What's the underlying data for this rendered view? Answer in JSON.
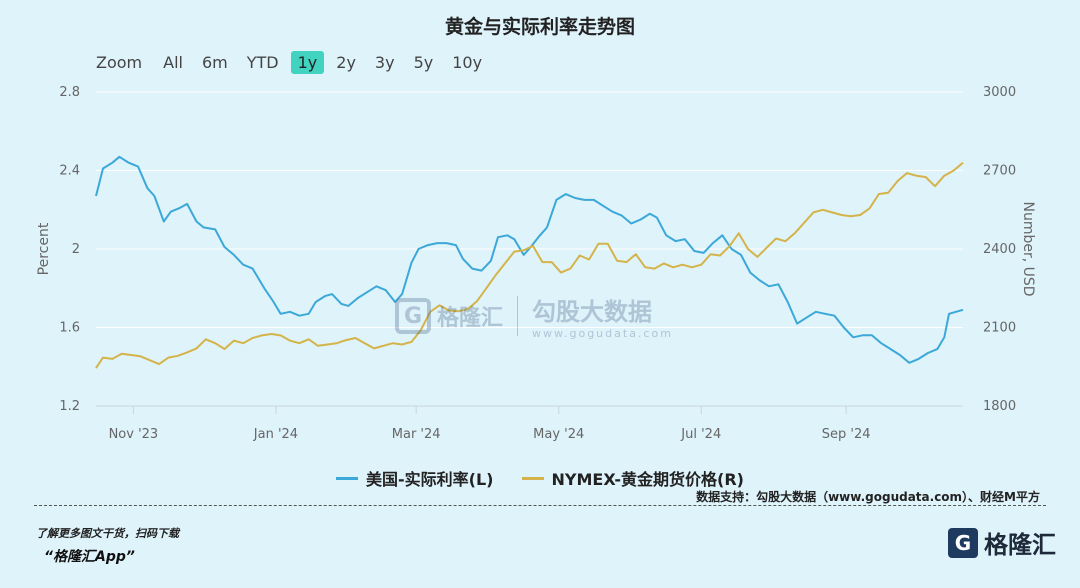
{
  "title": "黄金与实际利率走势图",
  "zoom": {
    "label": "Zoom",
    "buttons": [
      "All",
      "6m",
      "YTD",
      "1y",
      "2y",
      "3y",
      "5y",
      "10y"
    ],
    "active": "1y"
  },
  "watermark": {
    "name": "格隆汇",
    "brand": "勾股大数据",
    "url": "www.gogudata.com"
  },
  "source_note": "数据支持：勾股大数据（www.gogudata.com）、财经M平方",
  "footer": {
    "line1": "了解更多图文干货，扫码下载",
    "line2": "“格隆汇App”"
  },
  "logo": {
    "mark": "G",
    "name": "格隆汇"
  },
  "colors": {
    "real_rate": "#3ba8d8",
    "gold": "#d4b44a",
    "axis_text": "#666666",
    "grid": "#ffffff"
  },
  "chart_data": {
    "type": "line",
    "x_type": "date",
    "x_range": [
      "2023-10-16",
      "2024-10-21"
    ],
    "x_ticks": [
      {
        "date": "2023-11-01",
        "label": "Nov '23"
      },
      {
        "date": "2024-01-01",
        "label": "Jan '24"
      },
      {
        "date": "2024-03-01",
        "label": "Mar '24"
      },
      {
        "date": "2024-05-01",
        "label": "May '24"
      },
      {
        "date": "2024-07-01",
        "label": "Jul '24"
      },
      {
        "date": "2024-09-01",
        "label": "Sep '24"
      }
    ],
    "y_left": {
      "label": "Percent",
      "range": [
        1.2,
        2.8
      ],
      "ticks": [
        1.2,
        1.6,
        2,
        2.4,
        2.8
      ]
    },
    "y_right": {
      "label": "Number, USD",
      "range": [
        1800,
        3000
      ],
      "ticks": [
        1800,
        2100,
        2400,
        2700,
        3000
      ]
    },
    "legend_position": "bottom",
    "grid": true,
    "series": [
      {
        "name": "美国-实际利率(L)",
        "axis": "left",
        "points": [
          [
            "2023-10-16",
            2.27
          ],
          [
            "2023-10-19",
            2.41
          ],
          [
            "2023-10-23",
            2.44
          ],
          [
            "2023-10-26",
            2.47
          ],
          [
            "2023-10-30",
            2.44
          ],
          [
            "2023-11-03",
            2.42
          ],
          [
            "2023-11-07",
            2.31
          ],
          [
            "2023-11-10",
            2.27
          ],
          [
            "2023-11-14",
            2.14
          ],
          [
            "2023-11-17",
            2.19
          ],
          [
            "2023-11-21",
            2.21
          ],
          [
            "2023-11-24",
            2.23
          ],
          [
            "2023-11-28",
            2.14
          ],
          [
            "2023-12-01",
            2.11
          ],
          [
            "2023-12-06",
            2.1
          ],
          [
            "2023-12-10",
            2.01
          ],
          [
            "2023-12-14",
            1.97
          ],
          [
            "2023-12-18",
            1.92
          ],
          [
            "2023-12-22",
            1.9
          ],
          [
            "2023-12-27",
            1.8
          ],
          [
            "2023-12-31",
            1.73
          ],
          [
            "2024-01-03",
            1.67
          ],
          [
            "2024-01-07",
            1.68
          ],
          [
            "2024-01-11",
            1.66
          ],
          [
            "2024-01-15",
            1.67
          ],
          [
            "2024-01-18",
            1.73
          ],
          [
            "2024-01-22",
            1.76
          ],
          [
            "2024-01-25",
            1.77
          ],
          [
            "2024-01-29",
            1.72
          ],
          [
            "2024-02-01",
            1.71
          ],
          [
            "2024-02-05",
            1.75
          ],
          [
            "2024-02-09",
            1.78
          ],
          [
            "2024-02-13",
            1.81
          ],
          [
            "2024-02-17",
            1.79
          ],
          [
            "2024-02-21",
            1.73
          ],
          [
            "2024-02-24",
            1.77
          ],
          [
            "2024-02-28",
            1.93
          ],
          [
            "2024-03-02",
            2.0
          ],
          [
            "2024-03-06",
            2.02
          ],
          [
            "2024-03-10",
            2.03
          ],
          [
            "2024-03-14",
            2.03
          ],
          [
            "2024-03-18",
            2.02
          ],
          [
            "2024-03-21",
            1.95
          ],
          [
            "2024-03-25",
            1.9
          ],
          [
            "2024-03-29",
            1.89
          ],
          [
            "2024-04-02",
            1.94
          ],
          [
            "2024-04-05",
            2.06
          ],
          [
            "2024-04-09",
            2.07
          ],
          [
            "2024-04-12",
            2.05
          ],
          [
            "2024-04-16",
            1.97
          ],
          [
            "2024-04-19",
            2.01
          ],
          [
            "2024-04-23",
            2.07
          ],
          [
            "2024-04-26",
            2.11
          ],
          [
            "2024-04-30",
            2.25
          ],
          [
            "2024-05-04",
            2.28
          ],
          [
            "2024-05-08",
            2.26
          ],
          [
            "2024-05-12",
            2.25
          ],
          [
            "2024-05-16",
            2.25
          ],
          [
            "2024-05-20",
            2.22
          ],
          [
            "2024-05-24",
            2.19
          ],
          [
            "2024-05-28",
            2.17
          ],
          [
            "2024-06-01",
            2.13
          ],
          [
            "2024-06-05",
            2.15
          ],
          [
            "2024-06-09",
            2.18
          ],
          [
            "2024-06-12",
            2.16
          ],
          [
            "2024-06-16",
            2.07
          ],
          [
            "2024-06-20",
            2.04
          ],
          [
            "2024-06-24",
            2.05
          ],
          [
            "2024-06-28",
            1.99
          ],
          [
            "2024-07-02",
            1.98
          ],
          [
            "2024-07-06",
            2.03
          ],
          [
            "2024-07-10",
            2.07
          ],
          [
            "2024-07-14",
            2.0
          ],
          [
            "2024-07-18",
            1.97
          ],
          [
            "2024-07-22",
            1.88
          ],
          [
            "2024-07-26",
            1.84
          ],
          [
            "2024-07-30",
            1.81
          ],
          [
            "2024-08-03",
            1.82
          ],
          [
            "2024-08-07",
            1.73
          ],
          [
            "2024-08-11",
            1.62
          ],
          [
            "2024-08-15",
            1.65
          ],
          [
            "2024-08-19",
            1.68
          ],
          [
            "2024-08-23",
            1.67
          ],
          [
            "2024-08-27",
            1.66
          ],
          [
            "2024-08-31",
            1.6
          ],
          [
            "2024-09-04",
            1.55
          ],
          [
            "2024-09-08",
            1.56
          ],
          [
            "2024-09-12",
            1.56
          ],
          [
            "2024-09-16",
            1.52
          ],
          [
            "2024-09-20",
            1.49
          ],
          [
            "2024-09-24",
            1.46
          ],
          [
            "2024-09-28",
            1.42
          ],
          [
            "2024-10-02",
            1.44
          ],
          [
            "2024-10-06",
            1.47
          ],
          [
            "2024-10-10",
            1.49
          ],
          [
            "2024-10-13",
            1.55
          ],
          [
            "2024-10-15",
            1.67
          ],
          [
            "2024-10-18",
            1.68
          ],
          [
            "2024-10-21",
            1.69
          ]
        ]
      },
      {
        "name": "NYMEX-黄金期货价格(R)",
        "axis": "right",
        "points": [
          [
            "2023-10-16",
            1945
          ],
          [
            "2023-10-19",
            1985
          ],
          [
            "2023-10-23",
            1980
          ],
          [
            "2023-10-27",
            2000
          ],
          [
            "2023-10-31",
            1995
          ],
          [
            "2023-11-04",
            1990
          ],
          [
            "2023-11-08",
            1975
          ],
          [
            "2023-11-12",
            1960
          ],
          [
            "2023-11-16",
            1985
          ],
          [
            "2023-11-20",
            1992
          ],
          [
            "2023-11-24",
            2005
          ],
          [
            "2023-11-28",
            2020
          ],
          [
            "2023-12-02",
            2055
          ],
          [
            "2023-12-06",
            2040
          ],
          [
            "2023-12-10",
            2018
          ],
          [
            "2023-12-14",
            2050
          ],
          [
            "2023-12-18",
            2040
          ],
          [
            "2023-12-22",
            2060
          ],
          [
            "2023-12-26",
            2070
          ],
          [
            "2023-12-30",
            2075
          ],
          [
            "2024-01-03",
            2070
          ],
          [
            "2024-01-07",
            2050
          ],
          [
            "2024-01-11",
            2040
          ],
          [
            "2024-01-15",
            2055
          ],
          [
            "2024-01-19",
            2030
          ],
          [
            "2024-01-23",
            2035
          ],
          [
            "2024-01-27",
            2040
          ],
          [
            "2024-01-31",
            2052
          ],
          [
            "2024-02-04",
            2060
          ],
          [
            "2024-02-08",
            2040
          ],
          [
            "2024-02-12",
            2020
          ],
          [
            "2024-02-16",
            2030
          ],
          [
            "2024-02-20",
            2040
          ],
          [
            "2024-02-24",
            2035
          ],
          [
            "2024-02-28",
            2045
          ],
          [
            "2024-03-03",
            2090
          ],
          [
            "2024-03-07",
            2160
          ],
          [
            "2024-03-11",
            2185
          ],
          [
            "2024-03-15",
            2165
          ],
          [
            "2024-03-19",
            2162
          ],
          [
            "2024-03-23",
            2170
          ],
          [
            "2024-03-27",
            2200
          ],
          [
            "2024-03-31",
            2250
          ],
          [
            "2024-04-04",
            2300
          ],
          [
            "2024-04-08",
            2345
          ],
          [
            "2024-04-12",
            2390
          ],
          [
            "2024-04-16",
            2395
          ],
          [
            "2024-04-20",
            2412
          ],
          [
            "2024-04-24",
            2350
          ],
          [
            "2024-04-28",
            2350
          ],
          [
            "2024-05-02",
            2310
          ],
          [
            "2024-05-06",
            2325
          ],
          [
            "2024-05-10",
            2375
          ],
          [
            "2024-05-14",
            2360
          ],
          [
            "2024-05-18",
            2420
          ],
          [
            "2024-05-22",
            2420
          ],
          [
            "2024-05-26",
            2355
          ],
          [
            "2024-05-30",
            2350
          ],
          [
            "2024-06-03",
            2380
          ],
          [
            "2024-06-07",
            2330
          ],
          [
            "2024-06-11",
            2325
          ],
          [
            "2024-06-15",
            2345
          ],
          [
            "2024-06-19",
            2330
          ],
          [
            "2024-06-23",
            2340
          ],
          [
            "2024-06-27",
            2330
          ],
          [
            "2024-07-01",
            2340
          ],
          [
            "2024-07-05",
            2380
          ],
          [
            "2024-07-09",
            2375
          ],
          [
            "2024-07-13",
            2410
          ],
          [
            "2024-07-17",
            2460
          ],
          [
            "2024-07-21",
            2400
          ],
          [
            "2024-07-25",
            2370
          ],
          [
            "2024-07-29",
            2405
          ],
          [
            "2024-08-02",
            2440
          ],
          [
            "2024-08-06",
            2430
          ],
          [
            "2024-08-10",
            2460
          ],
          [
            "2024-08-14",
            2500
          ],
          [
            "2024-08-18",
            2540
          ],
          [
            "2024-08-22",
            2550
          ],
          [
            "2024-08-26",
            2540
          ],
          [
            "2024-08-30",
            2530
          ],
          [
            "2024-09-03",
            2525
          ],
          [
            "2024-09-07",
            2530
          ],
          [
            "2024-09-11",
            2555
          ],
          [
            "2024-09-15",
            2610
          ],
          [
            "2024-09-19",
            2615
          ],
          [
            "2024-09-23",
            2660
          ],
          [
            "2024-09-27",
            2690
          ],
          [
            "2024-10-01",
            2680
          ],
          [
            "2024-10-05",
            2675
          ],
          [
            "2024-10-09",
            2640
          ],
          [
            "2024-10-13",
            2680
          ],
          [
            "2024-10-17",
            2700
          ],
          [
            "2024-10-21",
            2730
          ]
        ]
      }
    ]
  }
}
